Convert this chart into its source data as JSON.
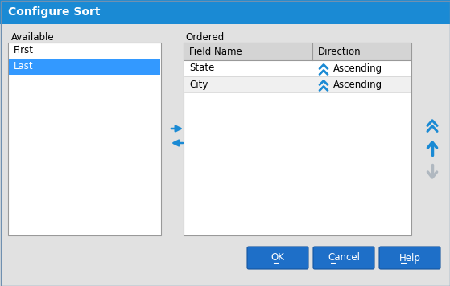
{
  "title": "Configure Sort",
  "title_bg": "#1a8ad4",
  "title_color": "#ffffff",
  "dialog_bg": "#e1e1e1",
  "available_label": "Available",
  "available_items": [
    "First",
    "Last"
  ],
  "available_selected": 1,
  "available_selected_color": "#3399ff",
  "ordered_label": "Ordered",
  "ordered_headers": [
    "Field Name",
    "Direction"
  ],
  "ordered_rows": [
    [
      "State",
      "Ascending"
    ],
    [
      "City",
      "Ascending"
    ]
  ],
  "ordered_row_colors": [
    "#ffffff",
    "#f0f0f0"
  ],
  "header_bg": "#d4d4d4",
  "list_bg": "#ffffff",
  "list_border": "#999999",
  "button_bg": "#1e6fc8",
  "button_border": "#1555a0",
  "button_text_color": "#ffffff",
  "buttons": [
    "OK",
    "Cancel",
    "Help"
  ],
  "arrow_color": "#1a8ad4",
  "arrow_disabled_color": "#b0b8c0"
}
